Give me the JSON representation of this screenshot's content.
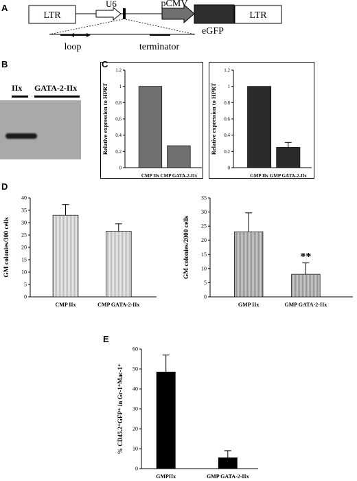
{
  "panels": {
    "a": "A",
    "b": "B",
    "c": "C",
    "d": "D",
    "e": "E"
  },
  "construct": {
    "ltr_left": "LTR",
    "u6": "U6",
    "pcmv": "pCMV",
    "egfp": "eGFP",
    "ltr_right": "LTR",
    "loop": "loop",
    "terminator": "terminator"
  },
  "blot": {
    "lane1": "IIx",
    "lane2": "GATA-2-IIx"
  },
  "chart_data": [
    {
      "type": "bar",
      "categories": [
        "CMP IIx",
        "CMP GATA-2-IIx"
      ],
      "values": [
        1.0,
        0.27
      ],
      "errors": [
        null,
        null
      ],
      "ylabel": "Relative expression to HPRT",
      "ylim": [
        0,
        1.2
      ],
      "yticks": [
        "0",
        "0.2",
        "0.4",
        "0.6",
        "0.8",
        "1",
        "1.2"
      ],
      "bar_color": "#707070"
    },
    {
      "type": "bar",
      "categories": [
        "GMP IIx",
        "GMP GATA-2-IIx"
      ],
      "values": [
        1.0,
        0.25
      ],
      "errors": [
        null,
        0.06
      ],
      "ylabel": "Relative expression to HPRT",
      "ylim": [
        0,
        1.2
      ],
      "yticks": [
        "0",
        "0.2",
        "0.4",
        "0.6",
        "0.8",
        "1",
        "1.2"
      ],
      "bar_color": "#2b2b2b"
    },
    {
      "type": "bar",
      "categories": [
        "CMP IIx",
        "CMP GATA-2-IIx"
      ],
      "values": [
        33,
        26.5
      ],
      "errors": [
        4.3,
        3.0
      ],
      "ylabel": "GM colonies/300 cells",
      "ylim": [
        0,
        40
      ],
      "yticks": [
        "0",
        "5",
        "10",
        "15",
        "20",
        "25",
        "30",
        "35",
        "40"
      ],
      "bar_color": "#e8e8e8"
    },
    {
      "type": "bar",
      "categories": [
        "GMP IIx",
        "GMP GATA-2-IIx"
      ],
      "values": [
        23,
        8
      ],
      "errors": [
        6.7,
        4.0
      ],
      "ylabel": "GM colonies/2000 cells",
      "ylim": [
        0,
        35
      ],
      "yticks": [
        "0",
        "5",
        "10",
        "15",
        "20",
        "25",
        "30",
        "35"
      ],
      "bar_color": "#c8c8c8",
      "annotation": "**"
    },
    {
      "type": "bar",
      "categories": [
        "GMPIIx",
        "GMP GATA-2-IIx"
      ],
      "values": [
        48.5,
        5.5
      ],
      "errors": [
        8.5,
        3.5
      ],
      "ylabel": "% CD45.2⁺GFP⁺ in Gr-1⁺Mac-1⁺",
      "ylim": [
        0,
        60
      ],
      "yticks": [
        "0",
        "10",
        "20",
        "30",
        "40",
        "50",
        "60"
      ],
      "bar_color": "#000000"
    }
  ]
}
